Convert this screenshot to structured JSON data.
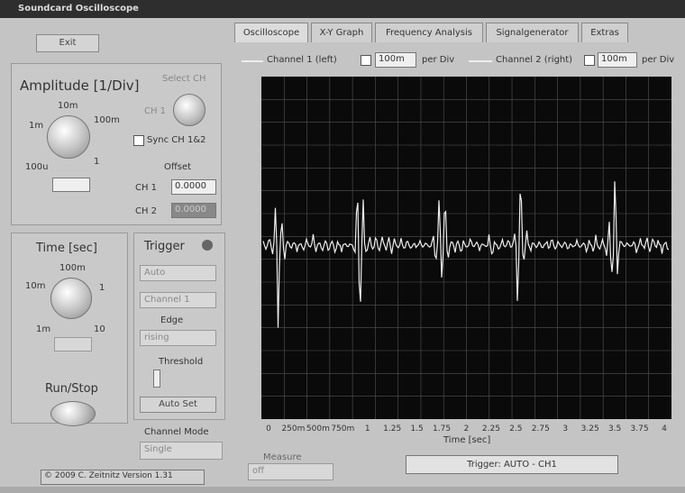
{
  "window": {
    "title": "Soundcard Oscilloscope"
  },
  "left_panel": {
    "exit": "Exit",
    "amplitude": {
      "title": "Amplitude [1/Div]",
      "knob_labels": [
        "10m",
        "100m",
        "1m",
        "1",
        "100u"
      ],
      "select_ch": "Select CH",
      "ch_button": "CH 1",
      "sync": "Sync CH 1&2",
      "offset": "Offset",
      "ch1_label": "CH 1",
      "ch1_offset": "0.0000",
      "ch2_label": "CH 2",
      "ch2_offset": "0.0000"
    },
    "time": {
      "title": "Time [sec]",
      "knob_labels": [
        "100m",
        "10m",
        "1",
        "1m",
        "10"
      ]
    },
    "run_stop": "Run/Stop",
    "trigger": {
      "title": "Trigger",
      "mode": "Auto",
      "channel": "Channel 1",
      "edge_label": "Edge",
      "edge": "rising",
      "threshold": "Threshold",
      "auto_set": "Auto Set"
    },
    "channel_mode": {
      "label": "Channel Mode",
      "value": "Single"
    },
    "copyright": "© 2009 C. Zeitnitz Version 1.31"
  },
  "tabs": [
    "Oscilloscope",
    "X-Y Graph",
    "Frequency Analysis",
    "Signalgenerator",
    "Extras"
  ],
  "channels": {
    "ch1": "Channel 1 (left)",
    "ch1_scale": "100m",
    "ch1_unit": "per Div",
    "ch2": "Channel 2 (right)",
    "ch2_scale": "100m",
    "ch2_unit": "per Div"
  },
  "scope": {
    "x_labels": [
      "0",
      "250m",
      "500m",
      "750m",
      "1",
      "1.25",
      "1.5",
      "1.75",
      "2",
      "2.25",
      "2.5",
      "2.75",
      "3",
      "3.25",
      "3.5",
      "3.75",
      "4"
    ],
    "x_title": "Time [sec]"
  },
  "status": {
    "measure_label": "Measure",
    "measure_value": "off",
    "trigger": "Trigger: AUTO - CH1"
  }
}
